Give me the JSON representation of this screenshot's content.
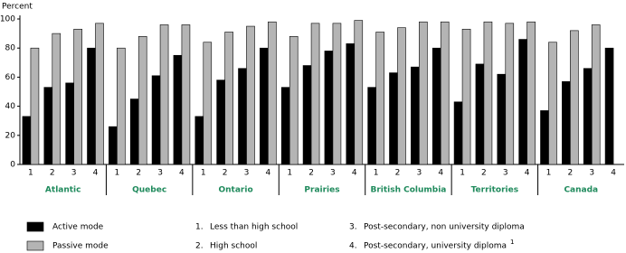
{
  "chart_data": {
    "type": "grouped-bar",
    "y_label": "Percent",
    "groups": [
      "Atlantic",
      "Quebec",
      "Ontario",
      "Prairies",
      "British Columbia",
      "Territories",
      "Canada"
    ],
    "categories": [
      "1",
      "2",
      "3",
      "4"
    ],
    "series": [
      {
        "name": "Active mode",
        "color": "#000000",
        "values": [
          [
            33,
            53,
            56,
            80
          ],
          [
            26,
            45,
            61,
            75
          ],
          [
            33,
            58,
            66,
            80
          ],
          [
            53,
            68,
            78,
            83
          ],
          [
            53,
            63,
            67,
            80
          ],
          [
            43,
            69,
            62,
            86
          ],
          [
            37,
            57,
            66,
            80
          ]
        ]
      },
      {
        "name": "Passive mode",
        "color": "#b4b4b4",
        "values": [
          [
            80,
            90,
            93,
            97
          ],
          [
            80,
            88,
            96,
            96
          ],
          [
            84,
            91,
            95,
            98
          ],
          [
            88,
            97,
            97,
            99
          ],
          [
            91,
            94,
            98,
            98
          ],
          [
            93,
            98,
            97,
            98
          ],
          [
            84,
            92,
            96,
            null
          ]
        ]
      }
    ],
    "ylim": [
      0,
      100
    ],
    "yticks": [
      0,
      20,
      40,
      60,
      80,
      100
    ],
    "group_label_color": "#1f8a5c",
    "education_levels": [
      {
        "number": "1.",
        "label": "Less than high school"
      },
      {
        "number": "2.",
        "label": "High school"
      },
      {
        "number": "3.",
        "label": "Post-secondary, non university diploma"
      },
      {
        "number": "4.",
        "label": "Post-secondary, university diploma",
        "footnote": "1"
      }
    ]
  }
}
